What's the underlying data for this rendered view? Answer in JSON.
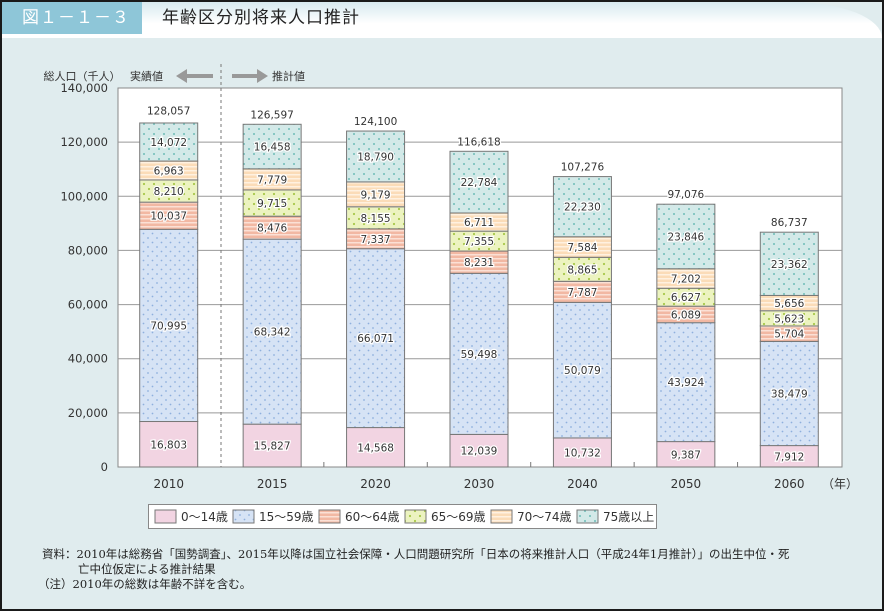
{
  "header": {
    "figure_label": "図１－１－３",
    "title": "年齢区分別将来人口推計"
  },
  "chart_data": {
    "type": "bar",
    "stacked": true,
    "title": "年齢区分別将来人口推計",
    "ylabel": "総人口（千人）",
    "xlabel_unit": "（年）",
    "ylim": [
      0,
      140000
    ],
    "yticks": [
      0,
      20000,
      40000,
      60000,
      80000,
      100000,
      120000,
      140000
    ],
    "ytick_labels": [
      "0",
      "20,000",
      "40,000",
      "60,000",
      "80,000",
      "100,000",
      "120,000",
      "140,000"
    ],
    "grid": true,
    "legend_position": "bottom",
    "annotations": {
      "actual_label": "実績値",
      "projected_label": "推計値",
      "divider_between": [
        "2010",
        "2015"
      ]
    },
    "categories": [
      "2010",
      "2015",
      "2020",
      "2030",
      "2040",
      "2050",
      "2060"
    ],
    "totals": [
      128057,
      126597,
      124100,
      116618,
      107276,
      97076,
      86737
    ],
    "total_labels": [
      "128,057",
      "126,597",
      "124,100",
      "116,618",
      "107,276",
      "97,076",
      "86,737"
    ],
    "series": [
      {
        "name": "0～14歳",
        "color": "#f2d4e2",
        "pattern": "plain",
        "values": [
          16803,
          15827,
          14568,
          12039,
          10732,
          9387,
          7912
        ],
        "labels": [
          "16,803",
          "15,827",
          "14,568",
          "12,039",
          "10,732",
          "9,387",
          "7,912"
        ]
      },
      {
        "name": "15～59歳",
        "color": "#d6e3f5",
        "pattern": "dots",
        "dot_color": "#8fb0dd",
        "values": [
          70995,
          68342,
          66071,
          59498,
          50079,
          43924,
          38479
        ],
        "labels": [
          "70,995",
          "68,342",
          "66,071",
          "59,498",
          "50,079",
          "43,924",
          "38,479"
        ]
      },
      {
        "name": "60～64歳",
        "color": "#f2b8a3",
        "pattern": "stripes",
        "stripe_color": "#fbe0d5",
        "values": [
          10037,
          8476,
          7337,
          8231,
          7787,
          6089,
          5704
        ],
        "labels": [
          "10,037",
          "8,476",
          "7,337",
          "8,231",
          "7,787",
          "6,089",
          "5,704"
        ]
      },
      {
        "name": "65～69歳",
        "color": "#ecf3c0",
        "pattern": "dots",
        "dot_color": "#a8c84a",
        "values": [
          8210,
          9715,
          8155,
          7355,
          8865,
          6627,
          5623
        ],
        "labels": [
          "8,210",
          "9,715",
          "8,155",
          "7,355",
          "8,865",
          "6,627",
          "5,623"
        ]
      },
      {
        "name": "70～74歳",
        "color": "#fbdcb8",
        "pattern": "stripes",
        "stripe_color": "#fff1e0",
        "values": [
          6963,
          7779,
          9179,
          6711,
          7584,
          7202,
          5656
        ],
        "labels": [
          "6,963",
          "7,779",
          "9,179",
          "6,711",
          "7,584",
          "7,202",
          "5,656"
        ]
      },
      {
        "name": "75歳以上",
        "color": "#d3e9e8",
        "pattern": "dots",
        "dot_color": "#6fbcb8",
        "values": [
          14072,
          16458,
          18790,
          22784,
          22230,
          23846,
          23362
        ],
        "labels": [
          "14,072",
          "16,458",
          "18,790",
          "22,784",
          "22,230",
          "23,846",
          "23,362"
        ]
      }
    ]
  },
  "notes": {
    "source_line1": "資料：2010年は総務省「国勢調査」、2015年以降は国立社会保障・人口問題研究所「日本の将来推計人口（平成24年1月推計）」の出生中位・死",
    "source_line2": "亡中位仮定による推計結果",
    "note_line": "（注）2010年の総数は年齢不詳を含む。"
  }
}
